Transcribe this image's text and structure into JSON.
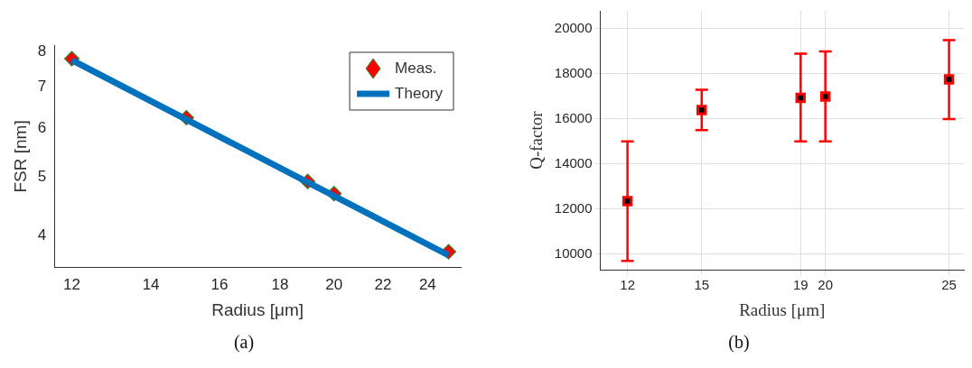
{
  "chart_data": [
    {
      "type": "scatter",
      "xlabel": "Radius [μm]",
      "ylabel": "FSR [nm]",
      "log": "xy",
      "xlim": [
        11.6,
        25.6
      ],
      "ylim": [
        3.55,
        8.2
      ],
      "xticks": [
        12,
        14,
        16,
        18,
        20,
        22,
        24
      ],
      "yticks": [
        4,
        5,
        6,
        7,
        8
      ],
      "grid": false,
      "legend": "top right",
      "annotations": [
        "(a)"
      ],
      "series": [
        {
          "name": "Meas.",
          "type": "scatter",
          "marker": "diamond",
          "color": "#ff0000",
          "x": [
            12,
            15,
            19,
            20,
            25
          ],
          "values": [
            7.79,
            6.24,
            4.91,
            4.69,
            3.77
          ]
        },
        {
          "name": "Theory",
          "type": "line",
          "marker": "none",
          "color": "#0072bd",
          "x": [
            12,
            25
          ],
          "values": [
            7.75,
            3.72
          ]
        }
      ]
    },
    {
      "type": "scatter",
      "xlabel": "Radius [μm]",
      "ylabel": "Q-factor",
      "xlim": [
        10.9,
        25.6
      ],
      "ylim": [
        9300,
        20800
      ],
      "xticks": [
        12,
        15,
        19,
        20,
        25
      ],
      "yticks": [
        10000,
        12000,
        14000,
        16000,
        18000,
        20000
      ],
      "grid": true,
      "legend": false,
      "annotations": [
        "(b)"
      ],
      "series": [
        {
          "type": "scatter",
          "marker": "square",
          "color": "#ff0000",
          "x": [
            12,
            15,
            19,
            20,
            25
          ],
          "values": [
            12350,
            16400,
            16940,
            17000,
            17760
          ],
          "errors": [
            [
              9700,
              15000
            ],
            [
              15500,
              17300
            ],
            [
              15000,
              18900
            ],
            [
              15000,
              19000
            ],
            [
              16000,
              19500
            ]
          ]
        }
      ]
    }
  ]
}
